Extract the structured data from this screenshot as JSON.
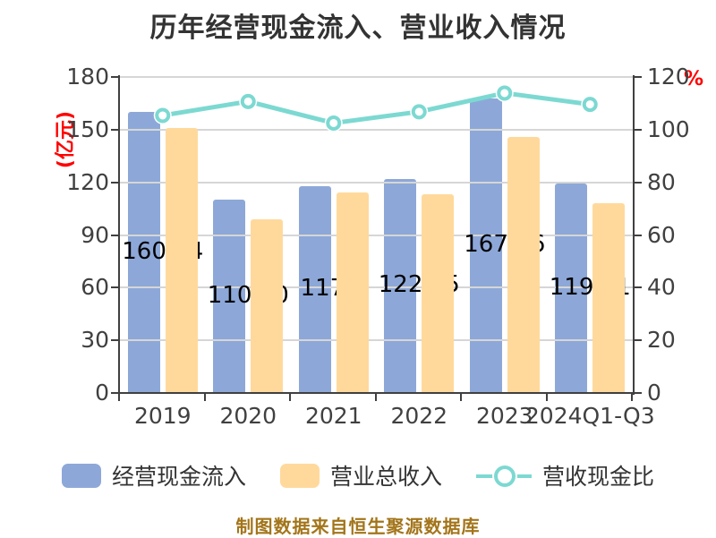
{
  "title": "历年经营现金流入、营业收入情况",
  "left_axis": {
    "unit_label": "(亿元)",
    "ticks": [
      180,
      150,
      120,
      90,
      60,
      30,
      0
    ],
    "max": 180
  },
  "right_axis": {
    "unit_label": "%",
    "ticks": [
      120,
      100,
      80,
      60,
      40,
      20,
      0
    ],
    "max": 120
  },
  "chart_data": {
    "type": "bar",
    "title": "历年经营现金流入、营业收入情况",
    "categories": [
      "2019",
      "2020",
      "2021",
      "2022",
      "2023",
      "2024Q1-Q3"
    ],
    "series": [
      {
        "name": "经营现金流入",
        "type": "bar",
        "axis": "left",
        "color": "#8da8d8",
        "values": [
          160.24,
          110.3,
          117.9,
          122.05,
          167.86,
          119.11
        ]
      },
      {
        "name": "营业总收入",
        "type": "bar",
        "axis": "left",
        "color": "#ffd99c",
        "values": [
          151,
          99,
          114,
          113,
          146,
          108
        ]
      },
      {
        "name": "营收现金比",
        "type": "line",
        "axis": "right",
        "color": "#7cd9d2",
        "values": [
          105.4,
          110.7,
          102.5,
          106.8,
          113.9,
          109.6
        ]
      }
    ],
    "bar_labels": [
      "160.24",
      "110.30",
      "117.9",
      "122.05",
      "167.86",
      "119.11"
    ],
    "ylabel": "(亿元)",
    "y2label": "%",
    "ylim": [
      0,
      180
    ],
    "y2lim": [
      0,
      120
    ],
    "grid": true,
    "legend_position": "bottom"
  },
  "legend": {
    "items": [
      {
        "label": "经营现金流入",
        "color": "#8da8d8",
        "type": "bar"
      },
      {
        "label": "营业总收入",
        "color": "#ffd99c",
        "type": "bar"
      },
      {
        "label": "营收现金比",
        "color": "#7cd9d2",
        "type": "line"
      }
    ]
  },
  "footer": {
    "text": "制图数据来自恒生聚源数据库"
  },
  "colors": {
    "title_text": "#333333",
    "axis_text": "#404040",
    "axis_line": "#404040",
    "gridline": "#d6d6d6",
    "bar_blue": "#8da8d8",
    "bar_orange": "#ffd99c",
    "line_teal": "#7cd9d2",
    "unit_red": "#ff0000",
    "data_label": "#000000",
    "footer_text": "#a3751a"
  }
}
